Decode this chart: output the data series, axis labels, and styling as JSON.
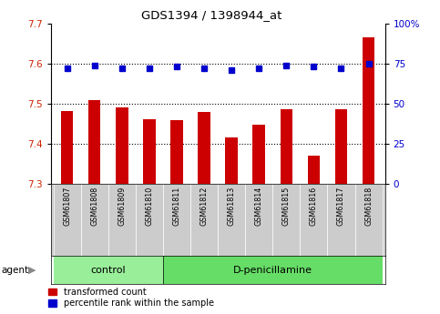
{
  "title": "GDS1394 / 1398944_at",
  "samples": [
    "GSM61807",
    "GSM61808",
    "GSM61809",
    "GSM61810",
    "GSM61811",
    "GSM61812",
    "GSM61813",
    "GSM61814",
    "GSM61815",
    "GSM61816",
    "GSM61817",
    "GSM61818"
  ],
  "red_values": [
    7.482,
    7.508,
    7.49,
    7.46,
    7.458,
    7.48,
    7.415,
    7.448,
    7.485,
    7.37,
    7.485,
    7.665
  ],
  "blue_values": [
    72,
    74,
    72,
    72,
    73,
    72,
    71,
    72,
    74,
    73,
    72,
    75
  ],
  "ylim_left": [
    7.3,
    7.7
  ],
  "ylim_right": [
    0,
    100
  ],
  "yticks_left": [
    7.3,
    7.4,
    7.5,
    7.6,
    7.7
  ],
  "yticks_right": [
    0,
    25,
    50,
    75,
    100
  ],
  "ytick_labels_right": [
    "0",
    "25",
    "50",
    "75",
    "100%"
  ],
  "hlines": [
    7.4,
    7.5,
    7.6
  ],
  "control_count": 4,
  "group_labels": [
    "control",
    "D-penicillamine"
  ],
  "control_color": "#99EE99",
  "dpen_color": "#66DD66",
  "bar_color": "#CC0000",
  "dot_color": "#0000CC",
  "tick_bg_color": "#CCCCCC",
  "legend_items": [
    "transformed count",
    "percentile rank within the sample"
  ]
}
